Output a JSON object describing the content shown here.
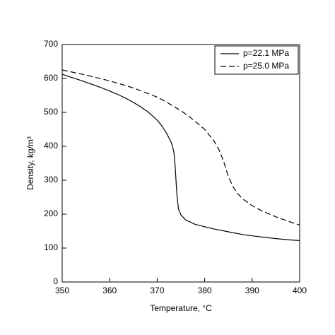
{
  "chart_data": {
    "type": "line",
    "x_label": "Temperature, °C",
    "y_label": "Density, kg/m³",
    "xlim": [
      350,
      400
    ],
    "xticks": [
      350,
      360,
      370,
      380,
      390,
      400
    ],
    "ylim": [
      0,
      700
    ],
    "yticks": [
      0,
      100,
      200,
      300,
      400,
      500,
      600,
      700
    ],
    "legend_position": "upper right",
    "series": [
      {
        "name": "p=22.1 MPa",
        "color": "#000000",
        "dash": "solid",
        "x": [
          350,
          352,
          354,
          356,
          358,
          360,
          362,
          364,
          366,
          368,
          370,
          371,
          372,
          373,
          373.5,
          373.8,
          374,
          374.2,
          374.5,
          375,
          376,
          378,
          380,
          382,
          385,
          388,
          390,
          393,
          395,
          398,
          400
        ],
        "values": [
          612,
          603,
          594,
          584,
          574,
          563,
          551,
          537,
          521,
          502,
          477,
          460,
          438,
          410,
          385,
          340,
          290,
          250,
          215,
          198,
          183,
          170,
          163,
          156,
          148,
          140,
          136,
          131,
          128,
          124,
          122
        ]
      },
      {
        "name": "p=25.0 MPa",
        "color": "#000000",
        "dash": "dashed",
        "x": [
          350,
          355,
          360,
          365,
          370,
          372,
          375,
          377,
          380,
          382,
          383,
          384,
          385,
          386,
          387,
          388,
          390,
          392,
          395,
          398,
          400
        ],
        "values": [
          625,
          610,
          593,
          572,
          545,
          530,
          505,
          485,
          450,
          415,
          390,
          355,
          310,
          280,
          260,
          245,
          225,
          210,
          192,
          177,
          168
        ]
      }
    ]
  }
}
